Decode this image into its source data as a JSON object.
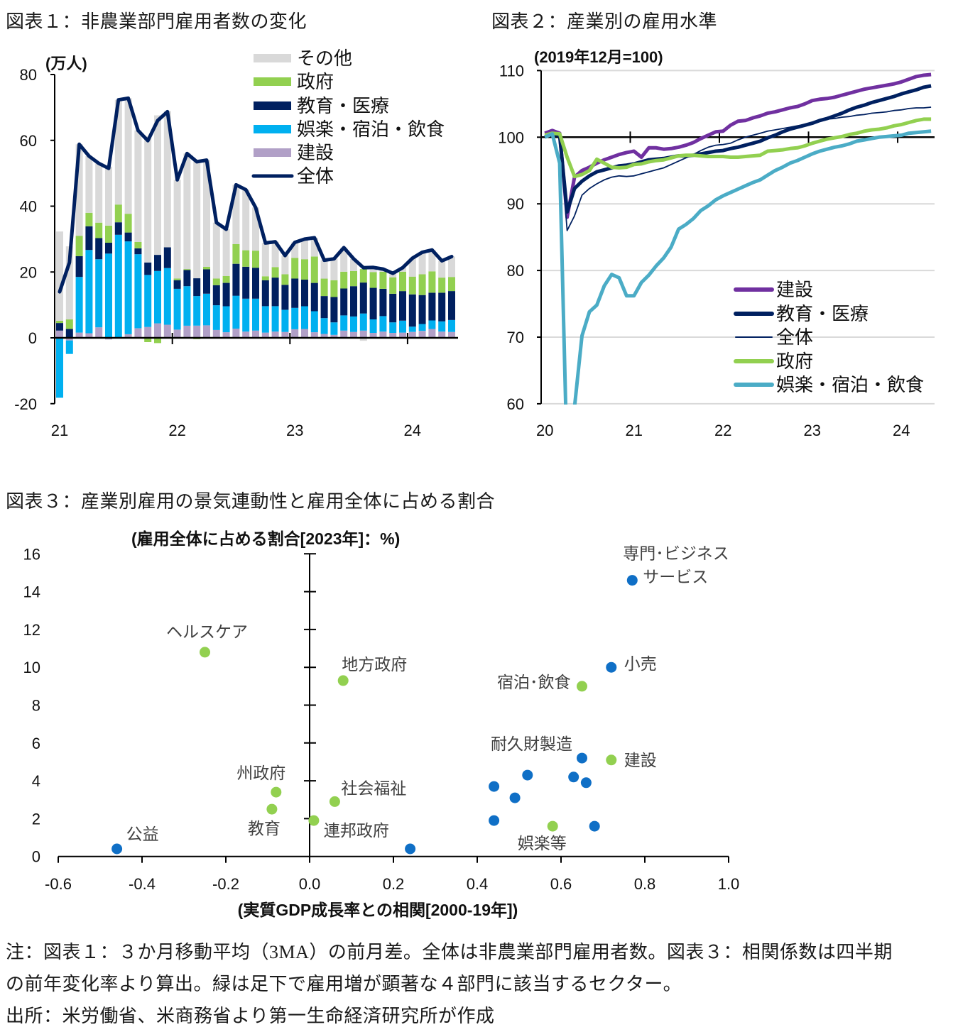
{
  "notes": [
    "注：図表１：３か月移動平均（3MA）の前月差。全体は非農業部門雇用者数。図表３：相関係数は四半期",
    "の前年変化率より算出。緑は足下で雇用増が顕著な４部門に該当するセクター。",
    "出所：米労働省、米商務省より第一生命経済研究所が作成"
  ],
  "chart_data": [
    {
      "type": "bar",
      "stacked": true,
      "title": "図表１：非農業部門雇用者数の変化",
      "ylabel": "(万人)",
      "xlabel": "",
      "ylim": [
        -20,
        80
      ],
      "yticks": [
        "80",
        "60",
        "40",
        "20",
        "0",
        "-20"
      ],
      "grid": false,
      "legend": "top-right",
      "categories": [
        "2021-01",
        "2021-02",
        "2021-03",
        "2021-04",
        "2021-05",
        "2021-06",
        "2021-07",
        "2021-08",
        "2021-09",
        "2021-10",
        "2021-11",
        "2021-12",
        "2022-01",
        "2022-02",
        "2022-03",
        "2022-04",
        "2022-05",
        "2022-06",
        "2022-07",
        "2022-08",
        "2022-09",
        "2022-10",
        "2022-11",
        "2022-12",
        "2023-01",
        "2023-02",
        "2023-03",
        "2023-04",
        "2023-05",
        "2023-06",
        "2023-07",
        "2023-08",
        "2023-09",
        "2023-10",
        "2023-11",
        "2023-12",
        "2024-01",
        "2024-02",
        "2024-03",
        "2024-04",
        "2024-05"
      ],
      "xtick_labels": [
        {
          "label": "21",
          "index": 0
        },
        {
          "label": "22",
          "index": 12
        },
        {
          "label": "23",
          "index": 24
        },
        {
          "label": "24",
          "index": 36
        }
      ],
      "series": [
        {
          "name": "その他",
          "color": "#D9D9D9",
          "values": [
            27.1,
            22.2,
            27.8,
            17.2,
            18.0,
            17.9,
            31.8,
            35.1,
            33.9,
            38.3,
            42.4,
            41.4,
            30.0,
            35.1,
            35.8,
            32.4,
            17.0,
            14.2,
            18.0,
            18.4,
            13.1,
            10.1,
            7.7,
            5.7,
            4.7,
            6.1,
            5.7,
            5.6,
            6.5,
            7.3,
            3.7,
            -0.9,
            1.4,
            0.8,
            1.2,
            1.2,
            5.6,
            6.7,
            6.5,
            5.1,
            6.2
          ]
        },
        {
          "name": "政府",
          "color": "#92D050",
          "values": [
            0.7,
            2.9,
            6.2,
            4.1,
            4.7,
            5.2,
            5.4,
            5.7,
            1.9,
            -1.3,
            -1.6,
            -0.2,
            0.5,
            0.3,
            -0.4,
            0.8,
            2.0,
            2.1,
            6.0,
            5.0,
            5.2,
            1.2,
            3.2,
            3.2,
            6.3,
            6.2,
            8.0,
            5.3,
            5.1,
            5.1,
            4.6,
            4.1,
            4.8,
            5.2,
            5.0,
            5.9,
            5.4,
            6.3,
            6.5,
            4.6,
            4.3
          ]
        },
        {
          "name": "教育・医療",
          "color": "#002060",
          "values": [
            2.3,
            2.7,
            6.3,
            7.2,
            6.4,
            3.3,
            3.8,
            2.7,
            1.8,
            3.8,
            4.9,
            6.3,
            2.6,
            4.9,
            5.4,
            7.4,
            6.1,
            7.1,
            9.7,
            9.7,
            9.4,
            7.9,
            8.7,
            7.6,
            8.9,
            8.1,
            8.6,
            6.7,
            7.7,
            8.2,
            9.2,
            9.4,
            9.6,
            8.3,
            8.7,
            9.0,
            9.8,
            8.8,
            8.4,
            8.7,
            8.8
          ]
        },
        {
          "name": "娯楽・宿泊・飲食",
          "color": "#00B0F0",
          "values": [
            -18.2,
            -4.1,
            16.9,
            25.3,
            20.7,
            25.6,
            31.3,
            28.2,
            22.5,
            15.8,
            15.9,
            17.2,
            12.4,
            12.0,
            9.0,
            9.6,
            7.5,
            7.9,
            10.0,
            10.0,
            9.7,
            8.0,
            7.7,
            6.7,
            6.5,
            6.9,
            6.4,
            4.8,
            3.8,
            4.6,
            4.7,
            5.2,
            4.1,
            4.7,
            3.2,
            3.6,
            1.6,
            2.1,
            2.6,
            3.1,
            3.6
          ]
        },
        {
          "name": "建設",
          "color": "#B1A0C7",
          "values": [
            2.2,
            -0.8,
            1.6,
            1.4,
            3.2,
            -0.5,
            0.0,
            1.1,
            2.9,
            3.3,
            4.4,
            4.0,
            2.5,
            3.7,
            3.7,
            3.8,
            2.4,
            1.7,
            2.8,
            1.9,
            2.2,
            1.6,
            1.9,
            1.8,
            2.6,
            2.7,
            1.7,
            1.2,
            0.9,
            2.2,
            1.8,
            2.2,
            1.5,
            1.9,
            1.5,
            1.6,
            1.8,
            2.1,
            2.7,
            1.9,
            1.8
          ]
        }
      ],
      "line_series": {
        "name": "全体",
        "color": "#002060",
        "values": [
          14.0,
          22.9,
          58.8,
          55.2,
          53.0,
          51.5,
          72.3,
          72.8,
          63.0,
          59.9,
          66.0,
          68.7,
          48.0,
          56.0,
          53.5,
          54.0,
          35.0,
          33.0,
          46.5,
          45.0,
          39.6,
          28.8,
          29.2,
          25.0,
          29.0,
          30.0,
          30.4,
          23.6,
          24.0,
          27.4,
          24.0,
          21.3,
          21.4,
          20.9,
          19.6,
          21.3,
          24.2,
          26.0,
          26.7,
          23.4,
          24.7
        ]
      }
    },
    {
      "type": "line",
      "title": "図表２：産業別の雇用水準",
      "ylabel": "(2019年12月=100)",
      "xlabel": "",
      "ylim": [
        60,
        110
      ],
      "yticks": [
        "110",
        "100",
        "90",
        "80",
        "70",
        "60"
      ],
      "baseline": 100,
      "grid": true,
      "legend": "bottom-right",
      "x": [
        "2020-01",
        "2020-02",
        "2020-03",
        "2020-04",
        "2020-05",
        "2020-06",
        "2020-07",
        "2020-08",
        "2020-09",
        "2020-10",
        "2020-11",
        "2020-12",
        "2021-01",
        "2021-02",
        "2021-03",
        "2021-04",
        "2021-05",
        "2021-06",
        "2021-07",
        "2021-08",
        "2021-09",
        "2021-10",
        "2021-11",
        "2021-12",
        "2022-01",
        "2022-02",
        "2022-03",
        "2022-04",
        "2022-05",
        "2022-06",
        "2022-07",
        "2022-08",
        "2022-09",
        "2022-10",
        "2022-11",
        "2022-12",
        "2023-01",
        "2023-02",
        "2023-03",
        "2023-04",
        "2023-05",
        "2023-06",
        "2023-07",
        "2023-08",
        "2023-09",
        "2023-10",
        "2023-11",
        "2023-12",
        "2024-01",
        "2024-02",
        "2024-03",
        "2024-04",
        "2024-05"
      ],
      "xtick_labels": [
        {
          "label": "20",
          "index": 0
        },
        {
          "label": "21",
          "index": 12
        },
        {
          "label": "22",
          "index": 24
        },
        {
          "label": "23",
          "index": 36
        },
        {
          "label": "24",
          "index": 48
        }
      ],
      "series": [
        {
          "name": "建設",
          "color": "#7030A0",
          "values": [
            100.6,
            101.0,
            100.6,
            88.0,
            94.0,
            95.0,
            95.5,
            96.1,
            96.6,
            97.0,
            97.4,
            97.7,
            97.9,
            97.0,
            98.4,
            98.4,
            98.2,
            98.3,
            98.5,
            98.8,
            99.2,
            99.8,
            100.3,
            100.8,
            100.9,
            101.8,
            102.4,
            102.5,
            102.9,
            103.2,
            103.6,
            103.8,
            104.1,
            104.4,
            104.6,
            105.0,
            105.5,
            105.7,
            105.8,
            106.0,
            106.3,
            106.6,
            106.9,
            107.2,
            107.4,
            107.6,
            107.8,
            108.0,
            108.3,
            108.7,
            109.1,
            109.3,
            109.4
          ]
        },
        {
          "name": "教育・医療",
          "color": "#002060",
          "values": [
            100.1,
            100.4,
            100.3,
            88.8,
            92.3,
            93.4,
            94.2,
            94.8,
            95.1,
            95.4,
            95.7,
            95.8,
            96.0,
            96.3,
            96.6,
            96.7,
            96.8,
            97.0,
            97.2,
            97.2,
            97.3,
            97.5,
            97.7,
            97.9,
            98.0,
            98.3,
            98.5,
            98.8,
            99.1,
            99.4,
            99.9,
            100.3,
            100.8,
            101.2,
            101.5,
            101.8,
            102.1,
            102.5,
            102.8,
            103.2,
            103.6,
            104.1,
            104.5,
            104.8,
            105.2,
            105.5,
            105.8,
            106.1,
            106.5,
            106.8,
            107.1,
            107.5,
            107.7
          ]
        },
        {
          "name": "全体",
          "color": "#002060",
          "values": [
            100.2,
            100.4,
            100.2,
            86.0,
            88.2,
            91.3,
            92.3,
            93.0,
            93.6,
            94.0,
            94.2,
            94.1,
            94.2,
            94.5,
            94.8,
            95.1,
            95.4,
            95.9,
            96.4,
            96.9,
            97.4,
            98.0,
            98.5,
            98.8,
            98.9,
            99.1,
            99.6,
            100.0,
            100.3,
            100.6,
            100.9,
            101.1,
            101.3,
            101.5,
            101.7,
            101.9,
            102.2,
            102.5,
            102.7,
            102.8,
            103.0,
            103.1,
            103.3,
            103.4,
            103.6,
            103.7,
            103.8,
            104.0,
            104.1,
            104.3,
            104.4,
            104.4,
            104.5
          ]
        },
        {
          "name": "政府",
          "color": "#92D050",
          "values": [
            100.3,
            100.6,
            100.5,
            97.0,
            94.1,
            94.4,
            95.0,
            96.7,
            96.1,
            95.5,
            95.4,
            95.5,
            95.9,
            96.0,
            96.3,
            96.5,
            96.6,
            96.9,
            97.2,
            97.3,
            97.3,
            97.2,
            97.1,
            97.1,
            97.1,
            97.0,
            97.0,
            97.1,
            97.2,
            97.3,
            97.9,
            98.0,
            98.1,
            98.3,
            98.4,
            98.7,
            99.1,
            99.4,
            99.7,
            99.9,
            100.1,
            100.4,
            100.6,
            100.9,
            101.1,
            101.2,
            101.4,
            101.7,
            101.9,
            102.2,
            102.5,
            102.7,
            102.7
          ]
        },
        {
          "name": "娯楽・宿泊・飲食",
          "color": "#4BACC6",
          "values": [
            100.0,
            100.5,
            96.1,
            51.0,
            59.5,
            70.2,
            73.8,
            74.8,
            77.7,
            79.4,
            78.9,
            76.2,
            76.2,
            78.2,
            79.3,
            80.7,
            81.9,
            83.5,
            86.2,
            86.9,
            87.8,
            89.0,
            89.7,
            90.6,
            91.2,
            91.7,
            92.2,
            92.7,
            93.2,
            93.6,
            94.3,
            95.0,
            95.5,
            96.1,
            96.5,
            97.0,
            97.5,
            97.9,
            98.2,
            98.5,
            98.7,
            99.0,
            99.4,
            99.6,
            99.8,
            100.0,
            100.1,
            100.2,
            100.3,
            100.6,
            100.7,
            100.8,
            100.9
          ]
        }
      ]
    },
    {
      "type": "scatter",
      "title": "図表３：産業別雇用の景気連動性と雇用全体に占める割合",
      "xlabel": "(実質GDP成長率との相関[2000-19年])",
      "ylabel": "(雇用全体に占める割合[2023年]：%)",
      "xlim": [
        -0.6,
        1.0
      ],
      "ylim": [
        0,
        16
      ],
      "xticks": [
        "-0.6",
        "-0.4",
        "-0.2",
        "0.0",
        "0.2",
        "0.4",
        "0.6",
        "0.8",
        "1.0"
      ],
      "yticks": [
        "16",
        "14",
        "12",
        "10",
        "8",
        "6",
        "4",
        "2",
        "0"
      ],
      "grid": false,
      "legend": "none",
      "points": [
        {
          "label": [
            "専門･ビジネス",
            "サービス"
          ],
          "x": 0.77,
          "y": 14.6,
          "color": "#0F6FC6"
        },
        {
          "label": [
            "小売"
          ],
          "x": 0.72,
          "y": 10.0,
          "color": "#0F6FC6"
        },
        {
          "label": [
            "宿泊･飲食"
          ],
          "x": 0.65,
          "y": 9.0,
          "color": "#92D050"
        },
        {
          "label": [
            "ヘルスケア"
          ],
          "x": -0.25,
          "y": 10.8,
          "color": "#92D050"
        },
        {
          "label": [
            "地方政府"
          ],
          "x": 0.08,
          "y": 9.3,
          "color": "#92D050"
        },
        {
          "label": [
            "耐久財製造"
          ],
          "x": 0.65,
          "y": 5.2,
          "color": "#0F6FC6"
        },
        {
          "label": [
            "建設"
          ],
          "x": 0.72,
          "y": 5.1,
          "color": "#92D050"
        },
        {
          "label": [
            "州政府"
          ],
          "x": -0.08,
          "y": 3.4,
          "color": "#92D050"
        },
        {
          "label": [
            "社会福祉"
          ],
          "x": 0.06,
          "y": 2.9,
          "color": "#92D050"
        },
        {
          "label": [
            "教育"
          ],
          "x": -0.09,
          "y": 2.5,
          "color": "#92D050"
        },
        {
          "label": [
            "連邦政府"
          ],
          "x": 0.01,
          "y": 1.9,
          "color": "#92D050"
        },
        {
          "label": [
            "公益"
          ],
          "x": -0.46,
          "y": 0.4,
          "color": "#0F6FC6"
        },
        {
          "label": [
            "娯楽等"
          ],
          "x": 0.58,
          "y": 1.6,
          "color": "#92D050"
        },
        {
          "label": [],
          "x": 0.24,
          "y": 0.4,
          "color": "#0F6FC6"
        },
        {
          "label": [],
          "x": 0.52,
          "y": 4.3,
          "color": "#0F6FC6"
        },
        {
          "label": [],
          "x": 0.63,
          "y": 4.2,
          "color": "#0F6FC6"
        },
        {
          "label": [],
          "x": 0.66,
          "y": 3.9,
          "color": "#0F6FC6"
        },
        {
          "label": [],
          "x": 0.44,
          "y": 3.7,
          "color": "#0F6FC6"
        },
        {
          "label": [],
          "x": 0.49,
          "y": 3.1,
          "color": "#0F6FC6"
        },
        {
          "label": [],
          "x": 0.44,
          "y": 1.9,
          "color": "#0F6FC6"
        },
        {
          "label": [],
          "x": 0.68,
          "y": 1.6,
          "color": "#0F6FC6"
        }
      ]
    }
  ]
}
